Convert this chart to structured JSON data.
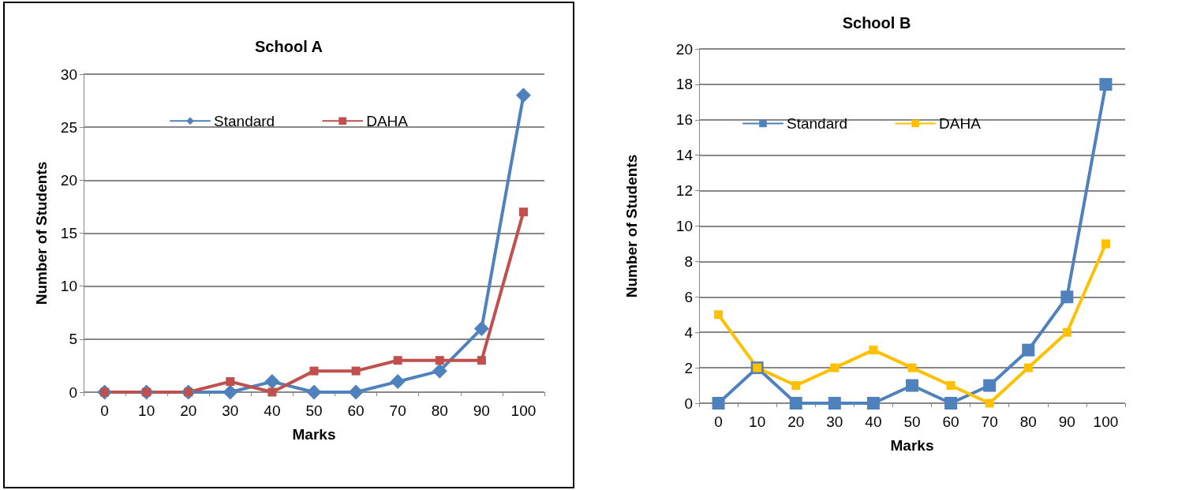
{
  "chart_data": [
    {
      "type": "line",
      "title": "School A",
      "xlabel": "Marks",
      "ylabel": "Number of Students",
      "categories": [
        "0",
        "10",
        "20",
        "30",
        "40",
        "50",
        "60",
        "70",
        "80",
        "90",
        "100"
      ],
      "series": [
        {
          "name": "Standard",
          "color": "#4f81bd",
          "marker": "diamond",
          "values": [
            0,
            0,
            0,
            0,
            1,
            0,
            0,
            1,
            2,
            6,
            28
          ]
        },
        {
          "name": "DAHA",
          "color": "#c0504d",
          "marker": "square",
          "values": [
            0,
            0,
            0,
            1,
            0,
            2,
            2,
            3,
            3,
            3,
            17
          ]
        }
      ],
      "ylim": [
        0,
        30
      ],
      "yticks": [
        0,
        5,
        10,
        15,
        20,
        25,
        30
      ],
      "grid": "y",
      "legend": "top",
      "line_style": "solid"
    },
    {
      "type": "line",
      "title": "School B",
      "xlabel": "Marks",
      "ylabel": "Number of Students",
      "categories": [
        "0",
        "10",
        "20",
        "30",
        "40",
        "50",
        "60",
        "70",
        "80",
        "90",
        "100"
      ],
      "series": [
        {
          "name": "Standard",
          "color": "#4f81bd",
          "marker": "square",
          "values": [
            0,
            2,
            0,
            0,
            0,
            1,
            0,
            1,
            3,
            6,
            18
          ]
        },
        {
          "name": "DAHA",
          "color": "#ffc000",
          "marker": "square",
          "values": [
            5,
            2,
            1,
            2,
            3,
            2,
            1,
            0,
            2,
            4,
            9
          ]
        }
      ],
      "ylim": [
        0,
        20
      ],
      "yticks": [
        0,
        2,
        4,
        6,
        8,
        10,
        12,
        14,
        16,
        18,
        20
      ],
      "grid": "y",
      "legend": "top left",
      "line_style": "solid"
    }
  ]
}
